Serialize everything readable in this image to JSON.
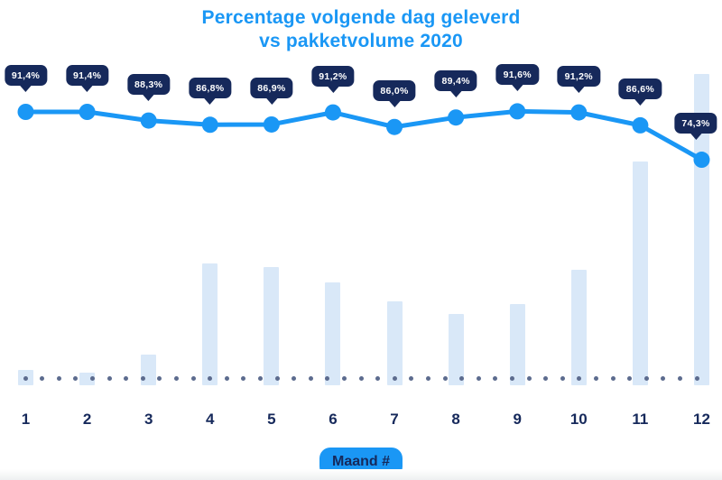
{
  "chart": {
    "title_line1": "Percentage volgende dag geleverd",
    "title_line2": "vs pakketvolume 2020",
    "colors": {
      "accent_blue": "#1a97f5",
      "badge_navy": "#16295b",
      "bar_light_blue": "#d9e8f8",
      "baseline_dot_gray": "#5c6b8e",
      "label_navy": "#16295b",
      "badge_text": "#ffffff"
    }
  },
  "chart_data": {
    "type": "combo",
    "title": "Percentage volgende dag geleverd vs pakketvolume 2020",
    "xlabel": "Maand #",
    "categories": [
      "1",
      "2",
      "3",
      "4",
      "5",
      "6",
      "7",
      "8",
      "9",
      "10",
      "11",
      "12"
    ],
    "legend": "none",
    "grid": "off",
    "series": [
      {
        "name": "Percentage volgende dag geleverd",
        "type": "line",
        "unit": "%",
        "values": [
          91.4,
          91.4,
          88.3,
          86.8,
          86.9,
          91.2,
          86.0,
          89.4,
          91.6,
          91.2,
          86.6,
          74.3
        ],
        "labels": [
          "91,4%",
          "91,4%",
          "88,3%",
          "86,8%",
          "86,9%",
          "91,2%",
          "86,0%",
          "89,4%",
          "91,6%",
          "91,2%",
          "86,6%",
          "74,3%"
        ]
      },
      {
        "name": "Pakketvolume 2020",
        "type": "bar",
        "unit": "relative volume (0-100, estimated from bar heights, no axis shown)",
        "values": [
          5,
          4,
          10,
          39,
          38,
          33,
          27,
          23,
          26,
          37,
          72,
          100
        ]
      }
    ]
  }
}
